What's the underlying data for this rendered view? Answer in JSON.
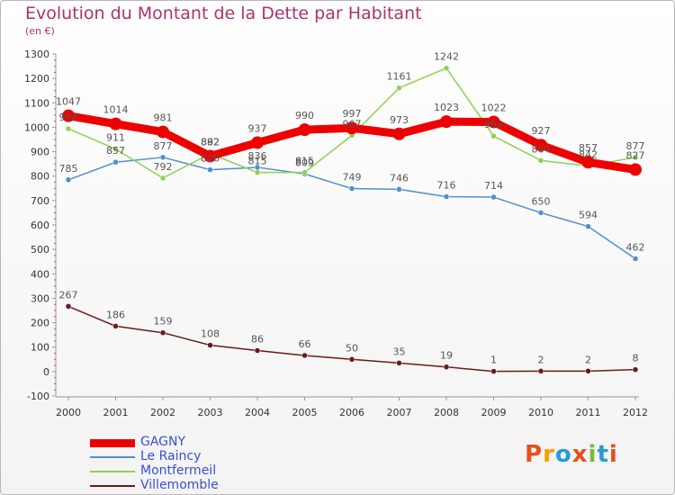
{
  "title": "Evolution du Montant de la Dette par Habitant",
  "subtitle": "(en €)",
  "logo": {
    "text": "Proxiti",
    "colors": [
      "#e94e1b",
      "#f2a100",
      "#2a9ad6",
      "#e94e1b",
      "#7bb93a",
      "#2a9ad6",
      "#e94e1b"
    ]
  },
  "chart_data": {
    "type": "line",
    "x": [
      "2000",
      "2001",
      "2002",
      "2003",
      "2004",
      "2005",
      "2006",
      "2007",
      "2008",
      "2009",
      "2010",
      "2011",
      "2012"
    ],
    "ylim": [
      -100,
      1300
    ],
    "yticks": [
      "-100",
      "0",
      "100",
      "200",
      "300",
      "400",
      "500",
      "600",
      "700",
      "800",
      "900",
      "1000",
      "1100",
      "1200",
      "1300"
    ],
    "grid": false,
    "legend_position": "bottom-left",
    "series": [
      {
        "name": "GAGNY",
        "color": "#ee0000",
        "values": [
          1047,
          1014,
          981,
          882,
          937,
          990,
          997,
          973,
          1023,
          1022,
          927,
          857,
          827
        ]
      },
      {
        "name": "Le Raincy",
        "color": "#4f8fd0",
        "values": [
          785,
          857,
          877,
          826,
          836,
          809,
          749,
          746,
          716,
          714,
          650,
          594,
          462
        ]
      },
      {
        "name": "Montfermeil",
        "color": "#8fd14f",
        "values": [
          994,
          911,
          792,
          892,
          815,
          815,
          967,
          1161,
          1242,
          964,
          864,
          842,
          877
        ]
      },
      {
        "name": "Villemomble",
        "color": "#6a1a1a",
        "values": [
          267,
          186,
          159,
          108,
          86,
          66,
          50,
          35,
          19,
          1,
          2,
          2,
          8
        ]
      }
    ],
    "labels": [
      {
        "series": 0,
        "text": [
          "1047",
          "1014",
          "981",
          "882",
          "937",
          "990",
          "997",
          "973",
          "1023",
          "1022",
          "927",
          "857",
          "827"
        ]
      },
      {
        "series": 1,
        "text": [
          "785",
          "857",
          "877",
          "826",
          "836",
          "809",
          "749",
          "746",
          "716",
          "714",
          "650",
          "594",
          "462"
        ]
      },
      {
        "series": 2,
        "text": [
          "994",
          "911",
          "792",
          "892",
          "815",
          "815",
          "967",
          "1161",
          "1242",
          "964",
          "864",
          "842",
          "877"
        ]
      },
      {
        "series": 3,
        "text": [
          "267",
          "186",
          "159",
          "108",
          "86",
          "66",
          "50",
          "35",
          "19",
          "1",
          "2",
          "2",
          "8"
        ]
      }
    ]
  }
}
